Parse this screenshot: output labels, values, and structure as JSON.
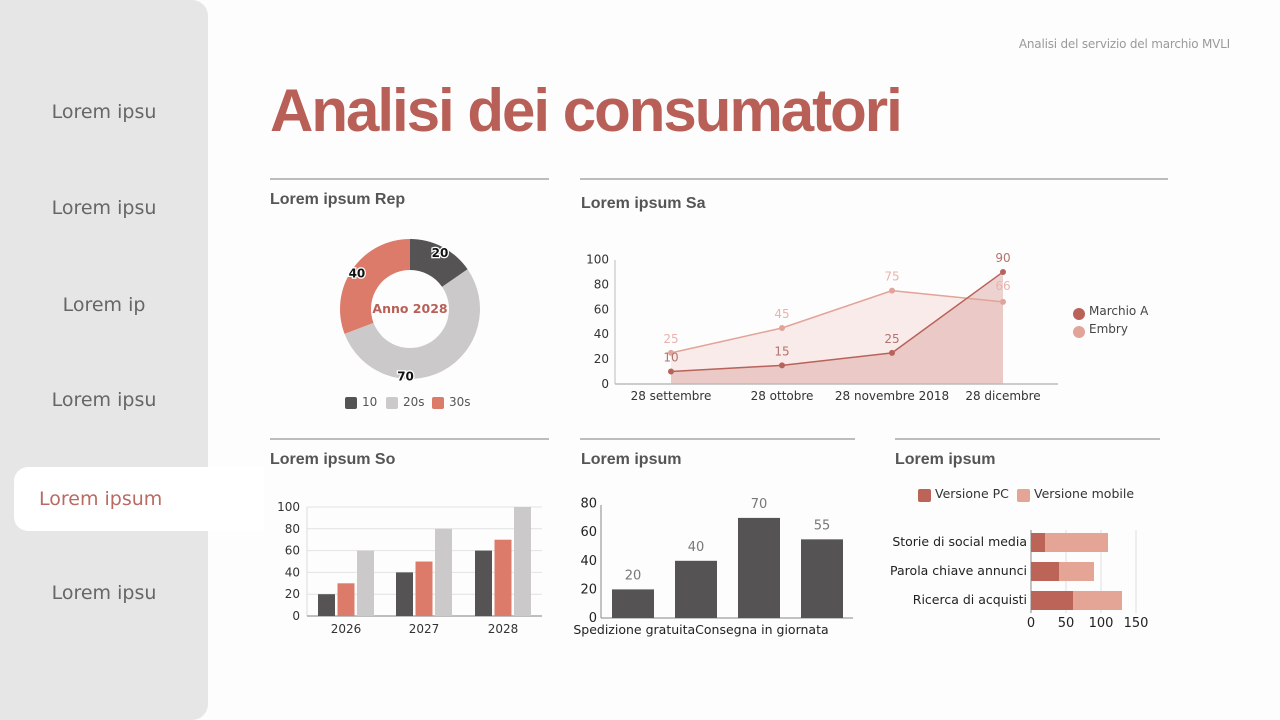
{
  "sidebar": {
    "items": [
      {
        "label": "Lorem ipsu",
        "active": false
      },
      {
        "label": "Lorem ipsu",
        "active": false
      },
      {
        "label": "Lorem ip",
        "active": false
      },
      {
        "label": "Lorem ipsu",
        "active": false
      },
      {
        "label": "Lorem ipsum",
        "active": true
      },
      {
        "label": "Lorem ipsu",
        "active": false
      }
    ]
  },
  "header": {
    "caption": "Analisi del servizio del marchio MVLI",
    "title": "Analisi dei consumatori"
  },
  "panels": {
    "donut": {
      "title": "Lorem ipsum Rep"
    },
    "line": {
      "title": "Lorem ipsum Sa"
    },
    "grouped": {
      "title": "Lorem ipsum So"
    },
    "bars": {
      "title": "Lorem ipsum"
    },
    "stacked": {
      "title": "Lorem ipsum"
    }
  },
  "colors": {
    "accent": "#b86057",
    "dark": "#555354",
    "grey": "#cbc9c9",
    "coral": "#dc7b6a",
    "marchio": "#b9625a",
    "embry": "#e2a398",
    "pc": "#bd6459",
    "mobile": "#e4a496"
  },
  "chart_data": [
    {
      "type": "pie",
      "variant": "donut",
      "title": "Lorem ipsum Rep",
      "center_label": "Anno 2028",
      "categories": [
        "10",
        "20s",
        "30s"
      ],
      "values": [
        20,
        70,
        40
      ],
      "legend_position": "bottom"
    },
    {
      "type": "area",
      "title": "Lorem ipsum Sa",
      "categories": [
        "28 settembre",
        "28 ottobre",
        "28 novembre 2018",
        "28 dicembre"
      ],
      "series": [
        {
          "name": "Marchio A",
          "values": [
            10,
            15,
            25,
            90
          ]
        },
        {
          "name": "Embry",
          "values": [
            25,
            45,
            75,
            66
          ]
        }
      ],
      "yticks": [
        0,
        20,
        40,
        60,
        80,
        100
      ],
      "ylim": [
        0,
        100
      ],
      "legend_position": "right"
    },
    {
      "type": "bar",
      "variant": "grouped",
      "title": "Lorem ipsum So",
      "categories": [
        "2026",
        "2027",
        "2028"
      ],
      "series": [
        {
          "name": "dark",
          "values": [
            20,
            40,
            60
          ]
        },
        {
          "name": "coral",
          "values": [
            30,
            50,
            70
          ]
        },
        {
          "name": "grey",
          "values": [
            60,
            80,
            100
          ]
        }
      ],
      "yticks": [
        0,
        20,
        40,
        60,
        80,
        100
      ],
      "ylim": [
        0,
        100
      ],
      "grid": true
    },
    {
      "type": "bar",
      "title": "Lorem ipsum",
      "categories": [
        "Spedizione gratuita",
        "Consegna in giornata",
        "",
        ""
      ],
      "visible_xlabel_text": "Spedizione gratuitaConsegna in giornata",
      "values": [
        20,
        40,
        70,
        55
      ],
      "yticks": [
        0,
        20,
        40,
        60,
        80
      ],
      "ylim": [
        0,
        80
      ]
    },
    {
      "type": "bar",
      "variant": "stacked-horizontal",
      "title": "Lorem ipsum",
      "categories": [
        "Storie di social media",
        "Parola chiave annunci",
        "Ricerca di acquisti"
      ],
      "series": [
        {
          "name": "Versione PC",
          "values": [
            20,
            40,
            60
          ]
        },
        {
          "name": "Versione mobile",
          "values": [
            90,
            50,
            70
          ]
        }
      ],
      "xticks": [
        0,
        50,
        100,
        150
      ],
      "xlim": [
        0,
        150
      ],
      "legend_position": "top"
    }
  ]
}
